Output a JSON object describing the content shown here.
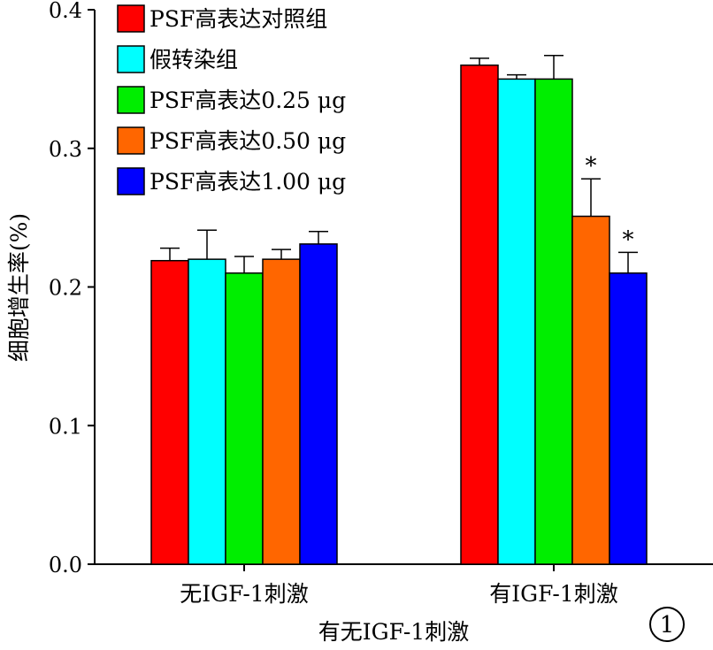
{
  "chart_data": {
    "type": "bar",
    "categories": [
      "无IGF-1刺激",
      "有IGF-1刺激"
    ],
    "xlabel": "有无IGF-1刺激",
    "ylabel": "细胞增生率(%)",
    "ylim": [
      0,
      0.4
    ],
    "yticks": [
      "0.0",
      "0.1",
      "0.2",
      "0.3",
      "0.4"
    ],
    "grid": false,
    "legend_position": "top-left",
    "panel_label": "1",
    "series": [
      {
        "name": "PSF高表达对照组",
        "color": "#ff0000",
        "values": [
          0.219,
          0.36
        ],
        "errors": [
          0.009,
          0.005
        ],
        "marks": [
          "",
          ""
        ]
      },
      {
        "name": "假转染组",
        "color": "#00ffff",
        "values": [
          0.22,
          0.35
        ],
        "errors": [
          0.021,
          0.003
        ],
        "marks": [
          "",
          ""
        ]
      },
      {
        "name": "PSF高表达0.25 μg",
        "color": "#00ee00",
        "values": [
          0.21,
          0.35
        ],
        "errors": [
          0.012,
          0.017
        ],
        "marks": [
          "",
          ""
        ]
      },
      {
        "name": "PSF高表达0.50 μg",
        "color": "#ff6600",
        "values": [
          0.22,
          0.251
        ],
        "errors": [
          0.007,
          0.027
        ],
        "marks": [
          "",
          "*"
        ]
      },
      {
        "name": "PSF高表达1.00 μg",
        "color": "#0000ff",
        "values": [
          0.231,
          0.21
        ],
        "errors": [
          0.009,
          0.015
        ],
        "marks": [
          "",
          "*"
        ]
      }
    ]
  }
}
